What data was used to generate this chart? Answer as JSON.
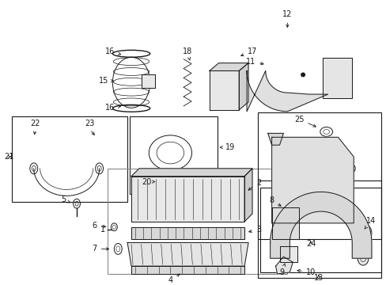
{
  "bg_color": "#ffffff",
  "line_color": "#1a1a1a",
  "fig_width": 4.89,
  "fig_height": 3.6,
  "dpi": 100,
  "label_fontsize": 7.0,
  "lw": 0.7
}
